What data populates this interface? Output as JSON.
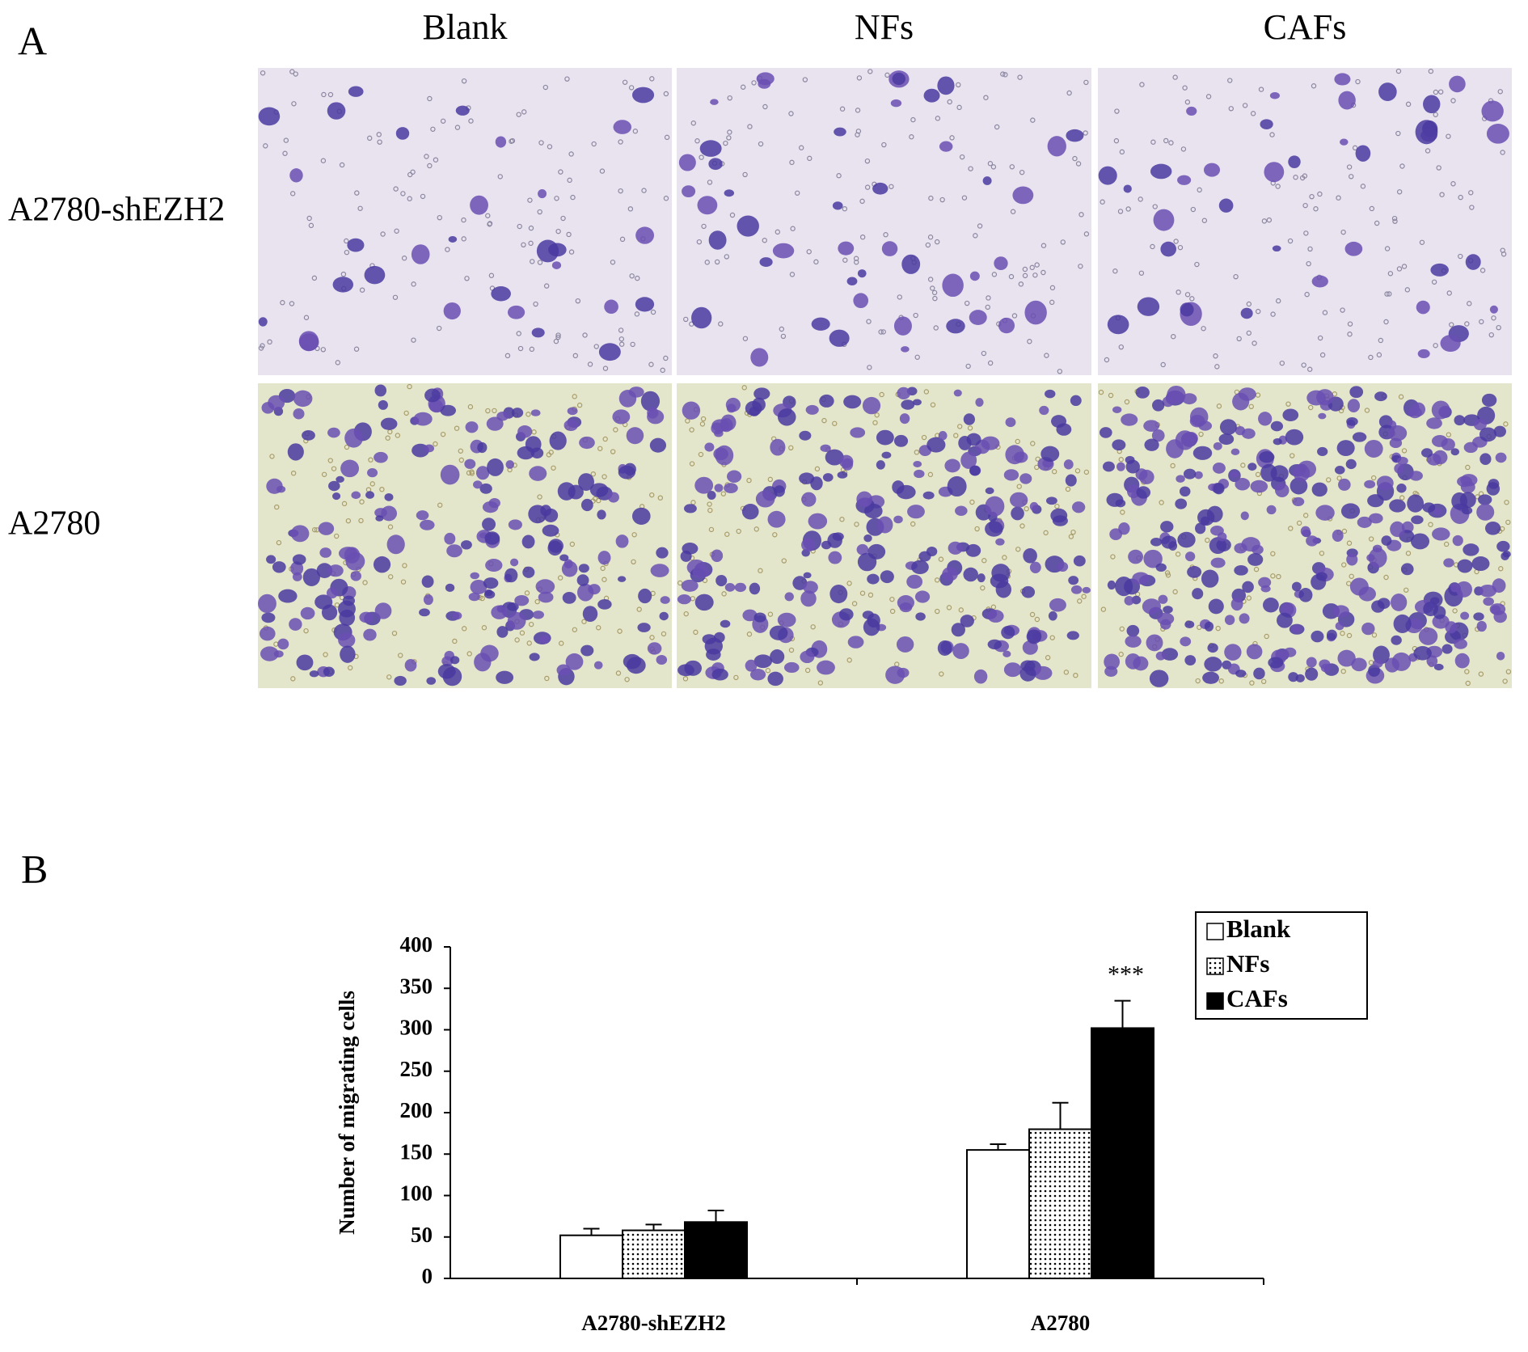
{
  "panel_a": {
    "label": "A",
    "columns": [
      "Blank",
      "NFs",
      "CAFs"
    ],
    "rows": [
      "A2780-shEZH2",
      "A2780"
    ]
  },
  "chart_data": {
    "type": "bar",
    "panel_label": "B",
    "y_label": "Number of migrating cells",
    "categories": [
      "A2780-shEZH2",
      "A2780"
    ],
    "series": [
      {
        "name": "Blank",
        "color": "#ffffff",
        "values": [
          52,
          155
        ],
        "errors": [
          8,
          7
        ]
      },
      {
        "name": "NFs",
        "color": "#ffffff",
        "pattern": "dots",
        "values": [
          58,
          180
        ],
        "errors": [
          7,
          32
        ]
      },
      {
        "name": "CAFs",
        "color": "#000000",
        "values": [
          68,
          302
        ],
        "errors": [
          14,
          33
        ]
      }
    ],
    "annotation": "***",
    "ylim": [
      0,
      400
    ],
    "yticks": [
      0,
      50,
      100,
      150,
      200,
      250,
      300,
      350,
      400
    ],
    "legend": "upper right"
  }
}
